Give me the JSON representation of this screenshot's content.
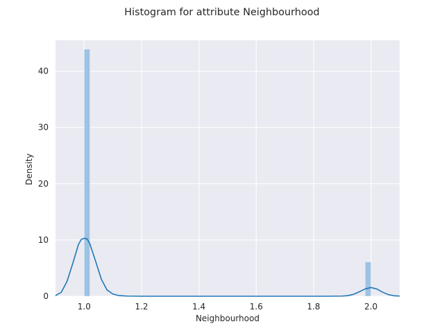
{
  "chart_data": {
    "type": "histogram",
    "title": "Histogram for attribute Neighbourhood",
    "xlabel": "Neighbourhood",
    "ylabel": "Density",
    "xlim": [
      0.9,
      2.1
    ],
    "ylim": [
      0,
      45.5
    ],
    "xticks": [
      1.0,
      1.2,
      1.4,
      1.6,
      1.8,
      2.0
    ],
    "xtick_labels": [
      "1.0",
      "1.2",
      "1.4",
      "1.6",
      "1.8",
      "2.0"
    ],
    "yticks": [
      0,
      10,
      20,
      30,
      40
    ],
    "ytick_labels": [
      "0",
      "10",
      "20",
      "30",
      "40"
    ],
    "grid": true,
    "bars": [
      {
        "x0": 1.0,
        "x1": 1.02,
        "density": 43.9
      },
      {
        "x0": 1.98,
        "x1": 2.0,
        "density": 6.1
      }
    ],
    "kde": {
      "x": [
        0.9,
        0.92,
        0.94,
        0.96,
        0.98,
        0.99,
        1.0,
        1.01,
        1.02,
        1.04,
        1.06,
        1.08,
        1.1,
        1.12,
        1.15,
        1.2,
        1.3,
        1.5,
        1.7,
        1.85,
        1.9,
        1.92,
        1.94,
        1.96,
        1.98,
        2.0,
        2.02,
        2.04,
        2.06,
        2.08,
        2.1
      ],
      "y": [
        0.1,
        0.7,
        2.6,
        5.8,
        9.2,
        10.1,
        10.3,
        10.2,
        9.3,
        6.2,
        3.0,
        1.1,
        0.4,
        0.12,
        0.03,
        0.0,
        0.0,
        0.0,
        0.0,
        0.0,
        0.03,
        0.1,
        0.35,
        0.8,
        1.3,
        1.55,
        1.3,
        0.75,
        0.3,
        0.08,
        0.02
      ]
    },
    "colors": {
      "background": "#eaeaf2",
      "grid": "#ffffff",
      "bar": "#9dc2e2",
      "kde": "#1f77b4"
    }
  }
}
